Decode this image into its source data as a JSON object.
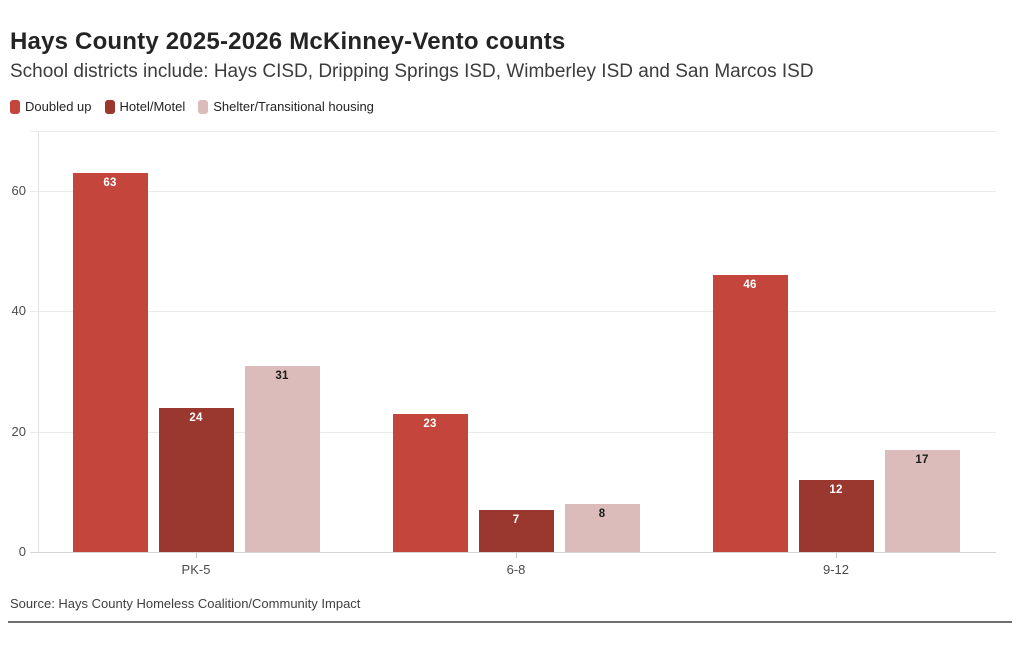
{
  "header": {
    "title": "Hays County 2025-2026 McKinney-Vento counts",
    "subtitle": "School districts include: Hays CISD, Dripping Springs ISD, Wimberley ISD and San Marcos ISD"
  },
  "legend": [
    {
      "label": "Doubled up",
      "color": "#c3453c"
    },
    {
      "label": "Hotel/Motel",
      "color": "#9a3830"
    },
    {
      "label": "Shelter/Transitional housing",
      "color": "#dcbcba"
    }
  ],
  "chart_data": {
    "type": "bar",
    "title": "Hays County 2025-2026 McKinney-Vento counts",
    "categories": [
      "PK-5",
      "6-8",
      "9-12"
    ],
    "series": [
      {
        "name": "Doubled up",
        "color": "#c3453c",
        "label_color": "#ffffff",
        "values": [
          63,
          23,
          46
        ]
      },
      {
        "name": "Hotel/Motel",
        "color": "#9a3830",
        "label_color": "#ffffff",
        "values": [
          24,
          7,
          12
        ]
      },
      {
        "name": "Shelter/Transitional housing",
        "color": "#dcbcba",
        "label_color": "#1a1a1a",
        "values": [
          31,
          8,
          17
        ]
      }
    ],
    "xlabel": "",
    "ylabel": "",
    "yticks": [
      0,
      20,
      40,
      60
    ],
    "ylim": [
      0,
      70
    ],
    "grid": true,
    "legend_position": "top",
    "value_labels": true
  },
  "footer": {
    "source": "Source: Hays County Homeless Coalition/Community Impact"
  }
}
